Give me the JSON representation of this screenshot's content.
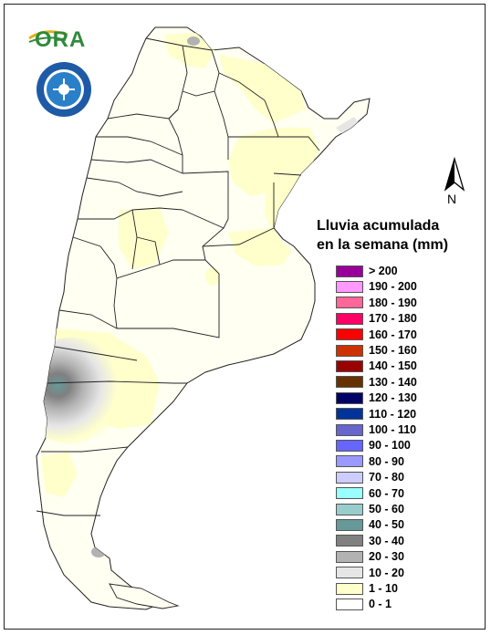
{
  "logo": {
    "text": "ORA"
  },
  "north_arrow": {
    "label": "N"
  },
  "legend": {
    "title_line1": "Lluvia acumulada",
    "title_line2": "en la semana (mm)",
    "items": [
      {
        "label": "> 200",
        "color": "#990099"
      },
      {
        "label": "190 - 200",
        "color": "#ff99ff"
      },
      {
        "label": "180 - 190",
        "color": "#ff6699"
      },
      {
        "label": "170 - 180",
        "color": "#ff0066"
      },
      {
        "label": "160 - 170",
        "color": "#ff0000"
      },
      {
        "label": "150 - 160",
        "color": "#cc3300"
      },
      {
        "label": "140 - 150",
        "color": "#990000"
      },
      {
        "label": "130 - 140",
        "color": "#663300"
      },
      {
        "label": "120 - 130",
        "color": "#000066"
      },
      {
        "label": "110 - 120",
        "color": "#003399"
      },
      {
        "label": "100 - 110",
        "color": "#6666cc"
      },
      {
        "label": "90 - 100",
        "color": "#6666ff"
      },
      {
        "label": "80 - 90",
        "color": "#9999ff"
      },
      {
        "label": "70 - 80",
        "color": "#ccccff"
      },
      {
        "label": "60 - 70",
        "color": "#99ffff"
      },
      {
        "label": "50 - 60",
        "color": "#99cccc"
      },
      {
        "label": "40 - 50",
        "color": "#669999"
      },
      {
        "label": "30 - 40",
        "color": "#808080"
      },
      {
        "label": "20 - 30",
        "color": "#b2b2b2"
      },
      {
        "label": "10 - 20",
        "color": "#e6e6e6"
      },
      {
        "label": "1 - 10",
        "color": "#ffffcc"
      },
      {
        "label": "0 - 1",
        "color": "#ffffff"
      }
    ]
  }
}
